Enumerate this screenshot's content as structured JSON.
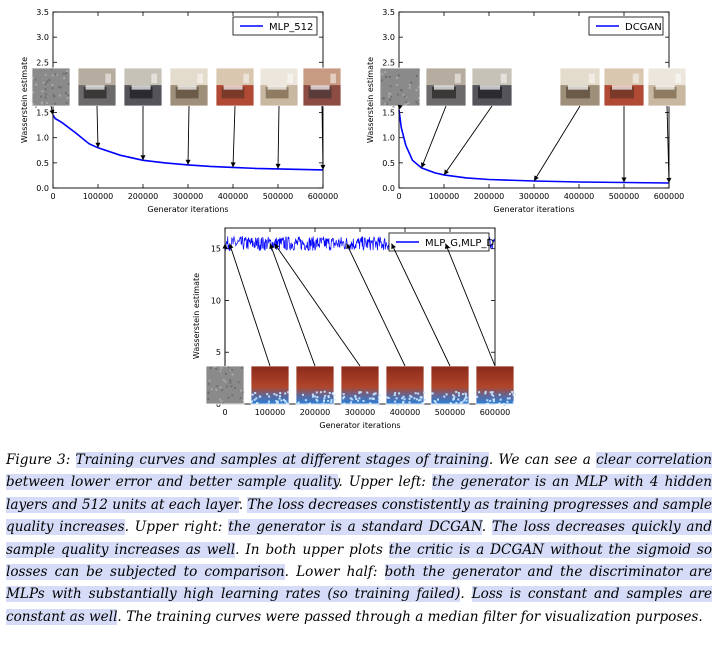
{
  "charts": [
    {
      "id": "upper-left",
      "chart_data": {
        "type": "line",
        "ylabel": "Wasserstein estimate",
        "xlabel": "Generator iterations",
        "xlim": [
          0,
          600000
        ],
        "ylim": [
          0,
          3.5
        ],
        "xticks": [
          0,
          100000,
          200000,
          300000,
          400000,
          500000,
          600000
        ],
        "yticks": [
          0.0,
          0.5,
          1.0,
          1.5,
          2.0,
          2.5,
          3.0,
          3.5
        ],
        "legend": "upper-right",
        "series": [
          {
            "name": "MLP_512",
            "color": "#0000ff",
            "x": [
              0,
              5000,
              20000,
              50000,
              80000,
              100000,
              150000,
              200000,
              250000,
              300000,
              350000,
              400000,
              450000,
              500000,
              550000,
              600000
            ],
            "y": [
              1.45,
              1.38,
              1.3,
              1.1,
              0.88,
              0.8,
              0.65,
              0.55,
              0.5,
              0.46,
              0.43,
              0.41,
              0.39,
              0.38,
              0.37,
              0.36
            ]
          }
        ],
        "sample_iterations": [
          0,
          100000,
          200000,
          300000,
          400000,
          500000,
          600000
        ]
      }
    },
    {
      "id": "upper-right",
      "chart_data": {
        "type": "line",
        "ylabel": "Wasserstein estimate",
        "xlabel": "Generator iterations",
        "xlim": [
          0,
          600000
        ],
        "ylim": [
          0,
          3.5
        ],
        "xticks": [
          0,
          100000,
          200000,
          300000,
          400000,
          500000,
          600000
        ],
        "yticks": [
          0.0,
          0.5,
          1.0,
          1.5,
          2.0,
          2.5,
          3.0,
          3.5
        ],
        "legend": "upper-right",
        "series": [
          {
            "name": "DCGAN",
            "color": "#0000ff",
            "x": [
              0,
              5000,
              15000,
              30000,
              50000,
              80000,
              100000,
              150000,
              200000,
              300000,
              400000,
              500000,
              600000
            ],
            "y": [
              1.55,
              1.2,
              0.85,
              0.55,
              0.4,
              0.3,
              0.26,
              0.2,
              0.17,
              0.14,
              0.12,
              0.11,
              0.1
            ]
          }
        ],
        "sample_iterations": [
          0,
          50000,
          100000,
          300000,
          500000,
          600000
        ]
      }
    },
    {
      "id": "lower",
      "chart_data": {
        "type": "line",
        "ylabel": "Wasserstein estimate",
        "xlabel": "Generator iterations",
        "xlim": [
          0,
          600000
        ],
        "ylim": [
          0,
          17
        ],
        "xticks": [
          0,
          100000,
          200000,
          300000,
          400000,
          500000,
          600000
        ],
        "yticks": [
          0,
          5,
          10,
          15
        ],
        "legend": "upper-right",
        "series": [
          {
            "name": "MLP_G,MLP_D",
            "color": "#0000ff",
            "y_level": 15.5,
            "y_noise_band": [
              14.8,
              16.2
            ]
          }
        ],
        "sample_iterations": [
          0,
          10000,
          100000,
          110000,
          270000,
          370000,
          490000,
          600000
        ]
      }
    }
  ],
  "thumb_colors": {
    "noise": "#8a8a8a",
    "bedroom_a": "#a06a5a",
    "bedroom_b": "#7a7068",
    "bedroom_c": "#c9b9a0",
    "fail_top": "#b0452a",
    "fail_bottom": "#2c7fd6"
  },
  "caption": {
    "label": "Figure 3:",
    "segments": [
      {
        "text": "Training curves and samples at different stages of training",
        "hl": true
      },
      {
        "text": ". We can see a ",
        "hl": false
      },
      {
        "text": "clear correlation between lower error and better sample quality",
        "hl": true
      },
      {
        "text": ". ",
        "hl": false
      },
      {
        "text": "Upper left:",
        "hl": false
      },
      {
        "text": " ",
        "hl": false
      },
      {
        "text": "the generator is an MLP with 4 hidden layers and 512 units at each layer",
        "hl": true
      },
      {
        "text": ". ",
        "hl": false
      },
      {
        "text": "The loss decreases constistently as training progresses and sample quality increases",
        "hl": true
      },
      {
        "text": ". Upper right: ",
        "hl": false
      },
      {
        "text": "the generator is a standard DCGAN",
        "hl": true
      },
      {
        "text": ". ",
        "hl": false
      },
      {
        "text": "The loss decreases quickly and sample quality increases as well",
        "hl": true
      },
      {
        "text": ". In both upper plots ",
        "hl": false
      },
      {
        "text": "the critic is a DCGAN without the sigmoid so losses can be subjected to comparison",
        "hl": true
      },
      {
        "text": ". Lower half: ",
        "hl": false
      },
      {
        "text": "both the generator and the discriminator are MLPs with substantially high learning rates (so training failed)",
        "hl": true
      },
      {
        "text": ". ",
        "hl": false
      },
      {
        "text": "Loss is constant and samples are constant as well",
        "hl": true
      },
      {
        "text": ". The training curves were passed through a median filter for visualization purposes.",
        "hl": false
      }
    ]
  }
}
